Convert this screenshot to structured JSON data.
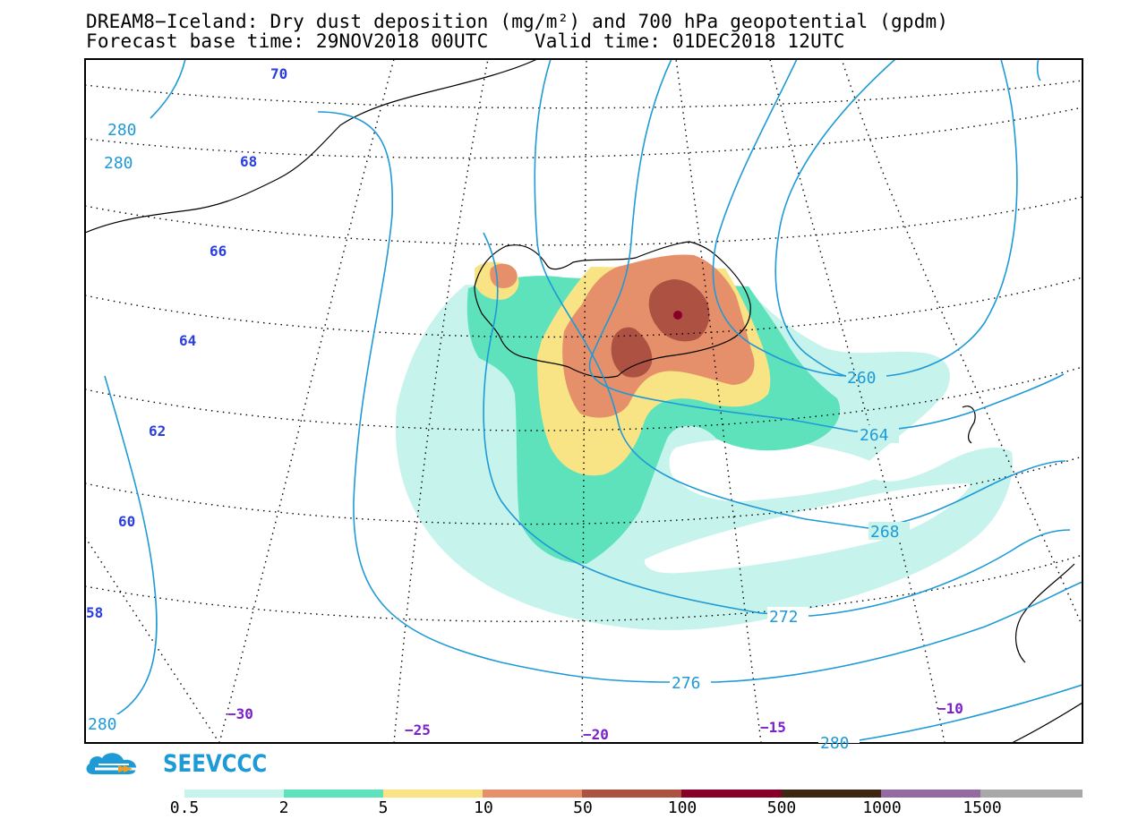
{
  "title": {
    "line1": "DREAM8−Iceland: Dry dust deposition (mg/m²) and 700 hPa geopotential (gpdm)",
    "line2": "Forecast base time: 29NOV2018 00UTC    Valid time: 01DEC2018 12UTC"
  },
  "map": {
    "latitude_labels": [
      "70",
      "68",
      "66",
      "64",
      "62",
      "60",
      "58"
    ],
    "longitude_labels": [
      "−30",
      "−25",
      "−20",
      "−15",
      "−10"
    ],
    "geopotential_contours": {
      "color": "#1e9ad6",
      "levels_labeled": [
        "280",
        "280",
        "260",
        "264",
        "268",
        "272",
        "276",
        "280",
        "280"
      ]
    },
    "dust_shading_colors": [
      "#c6f3ec",
      "#5ee2bc",
      "#f8e484",
      "#e5906a",
      "#ad5242",
      "#86002a",
      "#3d2612",
      "#946aa0",
      "#a8a8a8"
    ]
  },
  "logo": {
    "text": "SEEVCCC"
  },
  "colorbar": {
    "colors": [
      "#c6f3ec",
      "#5ee2bc",
      "#f8e484",
      "#e5906a",
      "#ad5242",
      "#86002a",
      "#3d2612",
      "#946aa0",
      "#a8a8a8"
    ],
    "labels": [
      "0.5",
      "2",
      "5",
      "10",
      "50",
      "100",
      "500",
      "1000",
      "1500"
    ]
  }
}
